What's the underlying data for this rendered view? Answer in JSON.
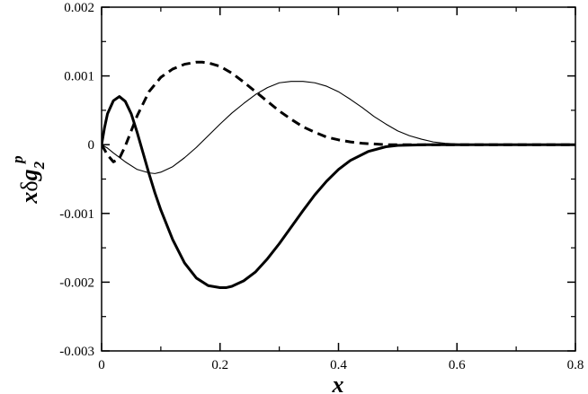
{
  "chart_data": {
    "type": "line",
    "title": "",
    "xlabel": "x",
    "ylabel": {
      "lead": "x",
      "delta": "δ",
      "g": "g",
      "subscript": "2",
      "superscript": "p"
    },
    "xlim": [
      0,
      0.8
    ],
    "ylim": [
      -0.003,
      0.002
    ],
    "grid": false,
    "legend": "none",
    "x_ticks": [
      {
        "value": 0,
        "label": "0"
      },
      {
        "value": 0.2,
        "label": "0.2"
      },
      {
        "value": 0.4,
        "label": "0.4"
      },
      {
        "value": 0.6,
        "label": "0.6"
      },
      {
        "value": 0.8,
        "label": "0.8"
      }
    ],
    "y_ticks": [
      {
        "value": 0.002,
        "label": "0.002"
      },
      {
        "value": 0.001,
        "label": "0.001"
      },
      {
        "value": 0,
        "label": "0"
      },
      {
        "value": -0.001,
        "label": "-0.001"
      },
      {
        "value": -0.002,
        "label": "-0.002"
      },
      {
        "value": -0.003,
        "label": "-0.003"
      }
    ],
    "series": [
      {
        "style": "thick-solid",
        "color": "#000000",
        "x": [
          0,
          0.005,
          0.01,
          0.02,
          0.03,
          0.04,
          0.05,
          0.06,
          0.07,
          0.08,
          0.09,
          0.1,
          0.12,
          0.14,
          0.16,
          0.18,
          0.2,
          0.21,
          0.22,
          0.24,
          0.26,
          0.28,
          0.3,
          0.32,
          0.34,
          0.36,
          0.38,
          0.4,
          0.42,
          0.45,
          0.48,
          0.5,
          0.55,
          0.6,
          0.65,
          0.7,
          0.8
        ],
        "y": [
          0,
          0.00025,
          0.00045,
          0.00064,
          0.0007,
          0.00063,
          0.00045,
          0.00018,
          -0.00012,
          -0.00042,
          -0.0007,
          -0.00095,
          -0.00138,
          -0.00172,
          -0.00194,
          -0.00205,
          -0.00208,
          -0.00208,
          -0.00206,
          -0.00198,
          -0.00185,
          -0.00166,
          -0.00144,
          -0.0012,
          -0.00096,
          -0.00073,
          -0.00053,
          -0.00036,
          -0.00023,
          -0.0001,
          -3e-05,
          -1e-05,
          0,
          0,
          0,
          0,
          0
        ]
      },
      {
        "style": "dashed",
        "color": "#000000",
        "x": [
          0,
          0.01,
          0.02,
          0.03,
          0.04,
          0.05,
          0.06,
          0.08,
          0.1,
          0.12,
          0.14,
          0.16,
          0.17,
          0.18,
          0.2,
          0.22,
          0.24,
          0.26,
          0.28,
          0.3,
          0.32,
          0.34,
          0.36,
          0.38,
          0.4,
          0.42,
          0.44,
          0.46,
          0.48,
          0.5,
          0.55,
          0.6,
          0.7,
          0.8
        ],
        "y": [
          0,
          -0.00015,
          -0.00025,
          -0.0002,
          -2e-05,
          0.0002,
          0.00042,
          0.00077,
          0.00098,
          0.0011,
          0.00117,
          0.0012,
          0.0012,
          0.00119,
          0.00114,
          0.00104,
          0.00091,
          0.00077,
          0.00063,
          0.00049,
          0.00037,
          0.00026,
          0.00018,
          0.00011,
          7e-05,
          4e-05,
          2e-05,
          1e-05,
          0,
          0,
          0,
          0,
          0,
          0
        ]
      },
      {
        "style": "thin-solid",
        "color": "#000000",
        "x": [
          0,
          0.01,
          0.02,
          0.04,
          0.06,
          0.08,
          0.09,
          0.1,
          0.12,
          0.14,
          0.16,
          0.18,
          0.2,
          0.22,
          0.24,
          0.26,
          0.28,
          0.3,
          0.32,
          0.34,
          0.36,
          0.38,
          0.4,
          0.42,
          0.44,
          0.46,
          0.48,
          0.5,
          0.52,
          0.54,
          0.56,
          0.58,
          0.6,
          0.62,
          0.65,
          0.7,
          0.8
        ],
        "y": [
          0,
          -5e-05,
          -0.00012,
          -0.00025,
          -0.00036,
          -0.00041,
          -0.00042,
          -0.0004,
          -0.00032,
          -0.00019,
          -4e-05,
          0.00013,
          0.0003,
          0.00046,
          0.0006,
          0.00073,
          0.00083,
          0.0009,
          0.00092,
          0.00092,
          0.0009,
          0.00085,
          0.00077,
          0.00066,
          0.00054,
          0.00041,
          0.0003,
          0.0002,
          0.00013,
          8e-05,
          4e-05,
          2e-05,
          1e-05,
          0,
          0,
          0,
          0
        ]
      }
    ]
  }
}
